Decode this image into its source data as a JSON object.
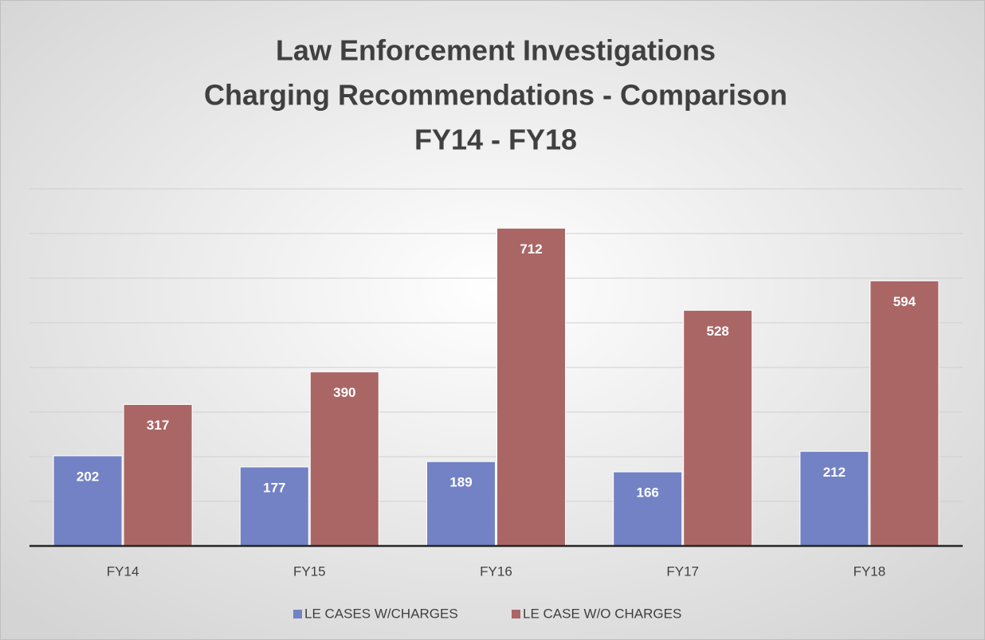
{
  "chart_data": {
    "type": "bar",
    "title": [
      "Law Enforcement Investigations",
      "Charging Recommendations - Comparison",
      "FY14 - FY18"
    ],
    "categories": [
      "FY14",
      "FY15",
      "FY16",
      "FY17",
      "FY18"
    ],
    "series": [
      {
        "name": "LE CASES W/CHARGES",
        "color": "#7282c4",
        "values": [
          202,
          177,
          189,
          166,
          212
        ]
      },
      {
        "name": "LE CASE W/O CHARGES",
        "color": "#aa6665",
        "values": [
          317,
          390,
          712,
          528,
          594
        ]
      }
    ],
    "ylim": [
      0,
      800
    ],
    "yticks": [
      0,
      100,
      200,
      300,
      400,
      500,
      600,
      700,
      800
    ],
    "grid": true,
    "legend": "bottom"
  }
}
